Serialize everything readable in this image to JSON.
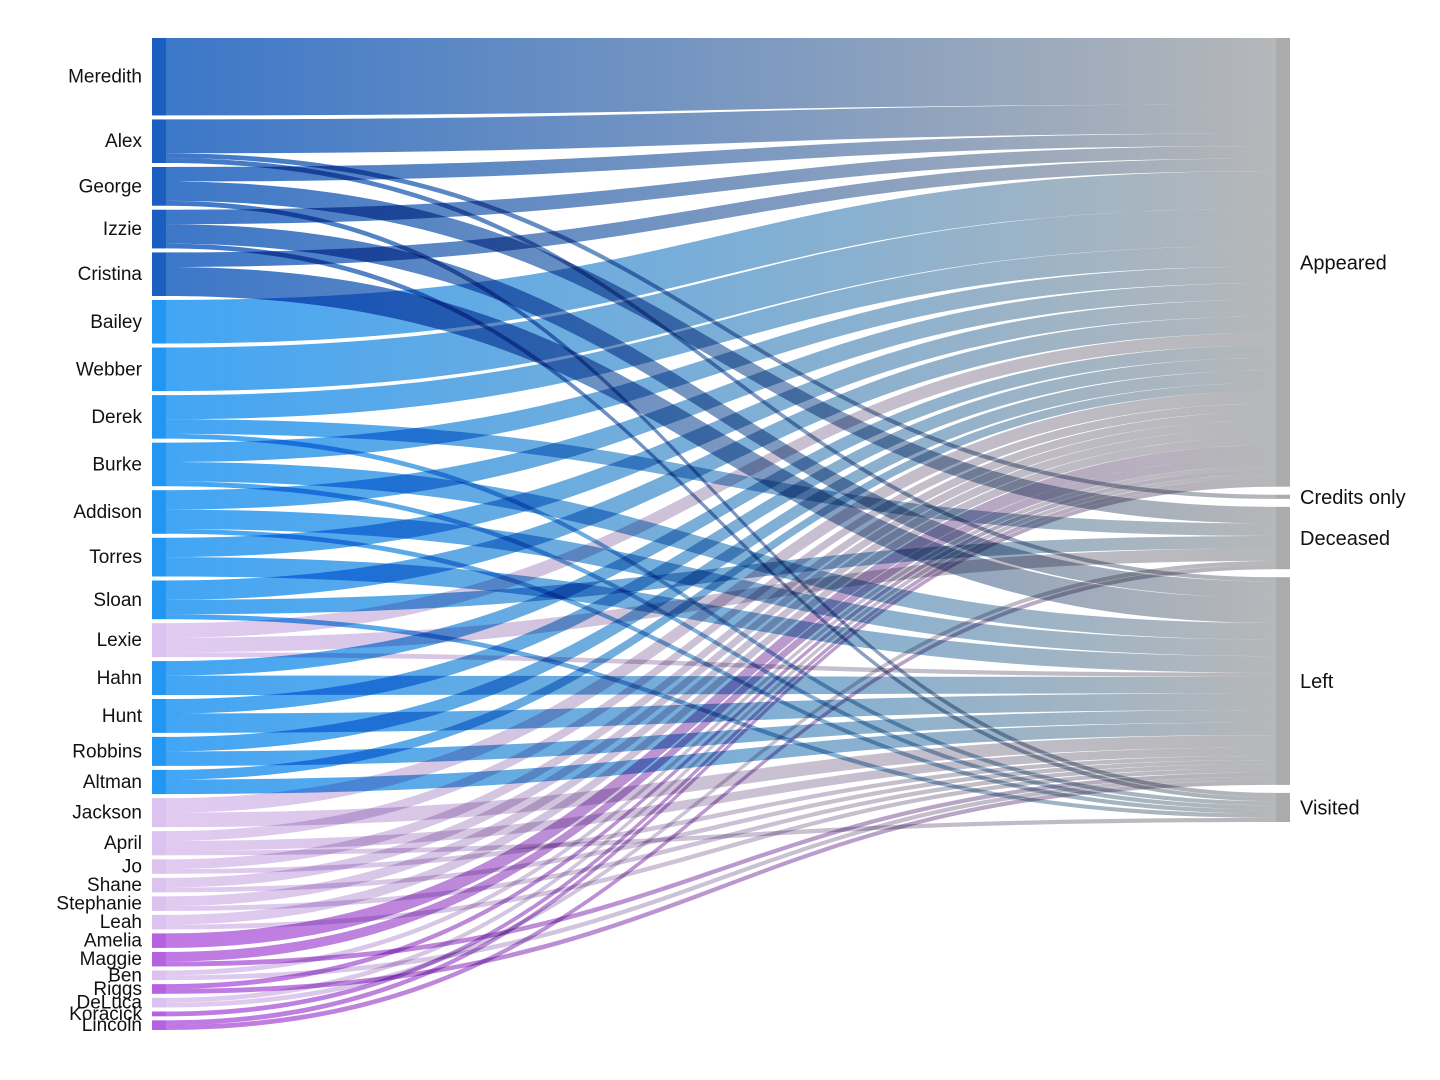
{
  "diagram": {
    "type": "sankey",
    "colors": {
      "original_cast": "#2f7ee6",
      "original_cast_dark": "#1a5fbf",
      "later_cast": "#2196f3",
      "newer_cast": "#dcc2ef",
      "newest_cast": "#b561e0",
      "target": "#a9abad"
    },
    "sources": [
      {
        "name": "Meredith",
        "group": "original_cast_dark",
        "values": {
          "Appeared": 16
        }
      },
      {
        "name": "Alex",
        "group": "original_cast_dark",
        "values": {
          "Appeared": 7,
          "Left": 1,
          "Credits only": 1
        }
      },
      {
        "name": "George",
        "group": "original_cast_dark",
        "values": {
          "Appeared": 3,
          "Deceased": 4,
          "Visited": 1
        }
      },
      {
        "name": "Izzie",
        "group": "original_cast_dark",
        "values": {
          "Appeared": 3,
          "Left": 4,
          "Visited": 1
        }
      },
      {
        "name": "Cristina",
        "group": "original_cast_dark",
        "values": {
          "Appeared": 3,
          "Left": 6
        }
      },
      {
        "name": "Bailey",
        "group": "later_cast",
        "values": {
          "Appeared": 9
        }
      },
      {
        "name": "Webber",
        "group": "later_cast",
        "values": {
          "Appeared": 9
        }
      },
      {
        "name": "Derek",
        "group": "later_cast",
        "values": {
          "Appeared": 5,
          "Deceased": 3,
          "Visited": 1
        }
      },
      {
        "name": "Burke",
        "group": "later_cast",
        "values": {
          "Appeared": 4,
          "Left": 4,
          "Visited": 1
        }
      },
      {
        "name": "Addison",
        "group": "later_cast",
        "values": {
          "Appeared": 4,
          "Left": 4,
          "Visited": 1
        }
      },
      {
        "name": "Torres",
        "group": "later_cast",
        "values": {
          "Appeared": 4,
          "Left": 4
        }
      },
      {
        "name": "Sloan",
        "group": "later_cast",
        "values": {
          "Appeared": 4,
          "Deceased": 3,
          "Visited": 1
        }
      },
      {
        "name": "Lexie",
        "group": "newer_cast",
        "values": {
          "Appeared": 3,
          "Deceased": 3,
          "Left": 1
        }
      },
      {
        "name": "Hahn",
        "group": "later_cast",
        "values": {
          "Appeared": 3,
          "Left": 4
        }
      },
      {
        "name": "Hunt",
        "group": "later_cast",
        "values": {
          "Appeared": 3,
          "Left": 4
        }
      },
      {
        "name": "Robbins",
        "group": "later_cast",
        "values": {
          "Appeared": 3,
          "Left": 3
        }
      },
      {
        "name": "Altman",
        "group": "later_cast",
        "values": {
          "Appeared": 2,
          "Left": 3
        }
      },
      {
        "name": "Jackson",
        "group": "newer_cast",
        "values": {
          "Appeared": 3,
          "Left": 3
        }
      },
      {
        "name": "April",
        "group": "newer_cast",
        "values": {
          "Appeared": 2,
          "Left": 2,
          "Visited": 1
        }
      },
      {
        "name": "Jo",
        "group": "newer_cast",
        "values": {
          "Appeared": 2,
          "Left": 1
        }
      },
      {
        "name": "Shane",
        "group": "newer_cast",
        "values": {
          "Appeared": 2,
          "Left": 1
        }
      },
      {
        "name": "Stephanie",
        "group": "newer_cast",
        "values": {
          "Appeared": 2,
          "Left": 1
        }
      },
      {
        "name": "Leah",
        "group": "newer_cast",
        "values": {
          "Appeared": 2,
          "Left": 1
        }
      },
      {
        "name": "Amelia",
        "group": "newest_cast",
        "values": {
          "Appeared": 3
        }
      },
      {
        "name": "Maggie",
        "group": "newest_cast",
        "values": {
          "Appeared": 2,
          "Left": 1
        }
      },
      {
        "name": "Ben",
        "group": "newer_cast",
        "values": {
          "Appeared": 1,
          "Left": 1
        }
      },
      {
        "name": "Riggs",
        "group": "newest_cast",
        "values": {
          "Appeared": 1,
          "Left": 1
        }
      },
      {
        "name": "DeLuca",
        "group": "newer_cast",
        "values": {
          "Appeared": 1,
          "Deceased": 1
        }
      },
      {
        "name": "Koracick",
        "group": "newest_cast",
        "values": {
          "Appeared": 1
        }
      },
      {
        "name": "Lincoln",
        "group": "newest_cast",
        "values": {
          "Appeared": 1,
          "Deceased": 1
        }
      }
    ],
    "targets": [
      {
        "name": "Appeared"
      },
      {
        "name": "Credits only"
      },
      {
        "name": "Deceased"
      },
      {
        "name": "Left"
      },
      {
        "name": "Visited"
      }
    ]
  }
}
